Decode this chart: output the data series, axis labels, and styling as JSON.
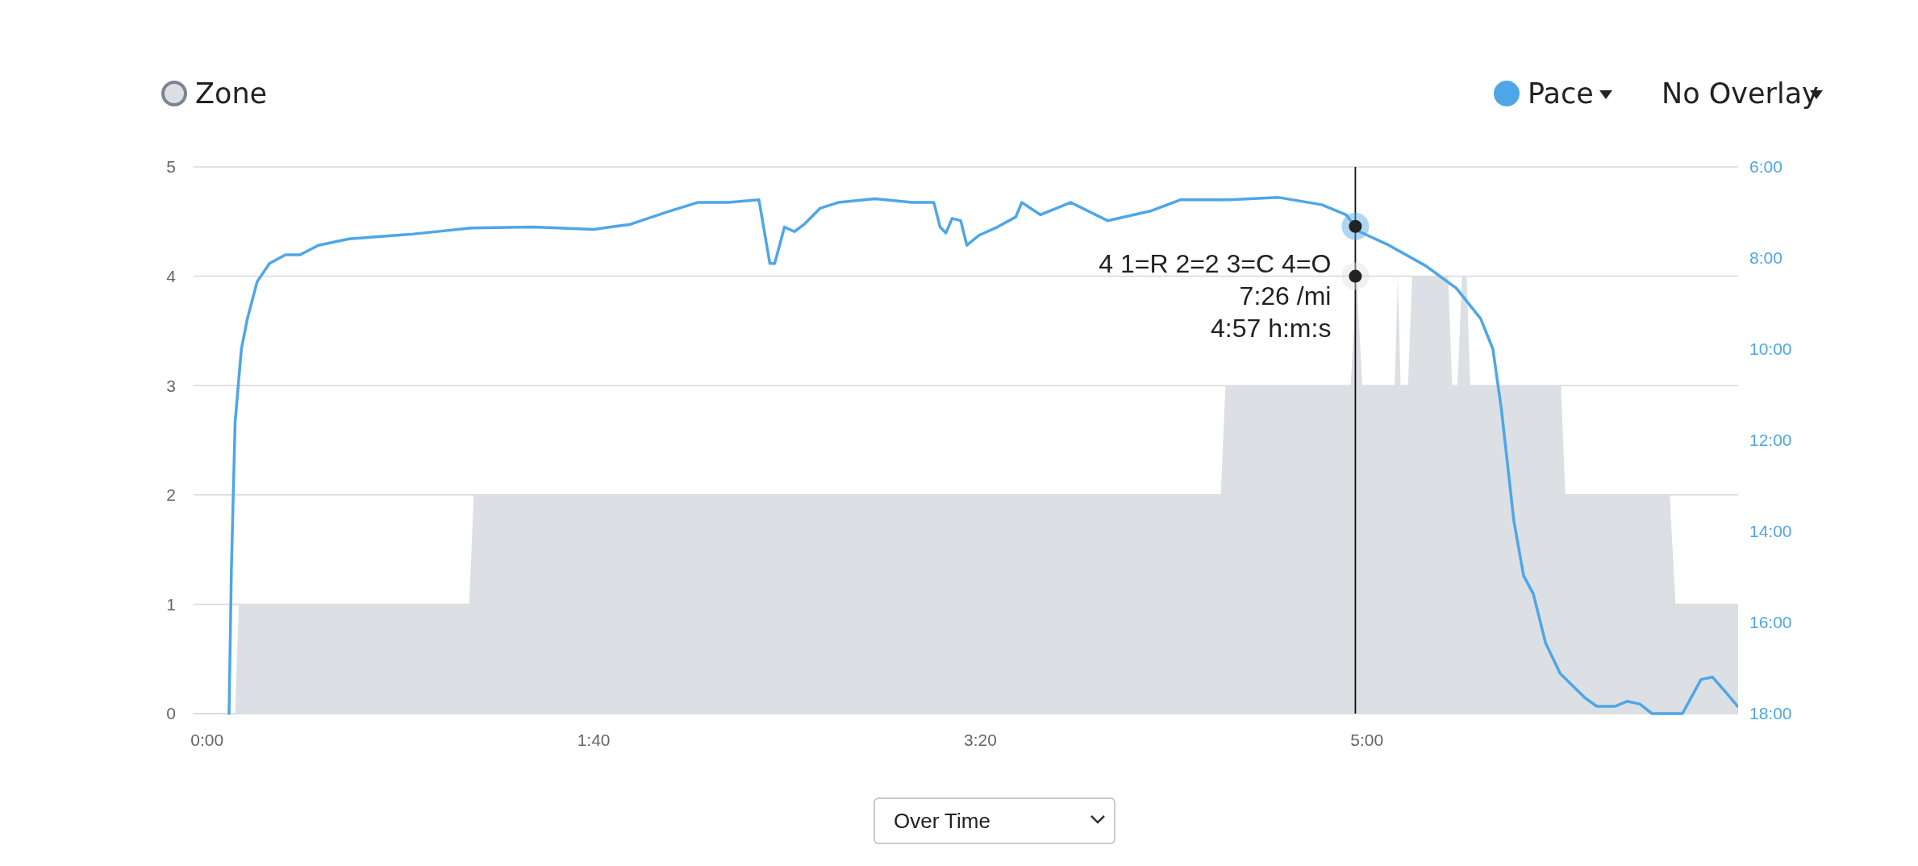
{
  "chart_data": {
    "type": "area",
    "xlim": [
      -0.058,
      6.6
    ],
    "xticks": [
      {
        "value": 0,
        "label": "0:00"
      },
      {
        "value": 1.6667,
        "label": "1:40"
      },
      {
        "value": 3.3333,
        "label": "3:20"
      },
      {
        "value": 5,
        "label": "5:00"
      }
    ],
    "ylim": [
      0,
      5
    ],
    "yticks": [
      0,
      1,
      2,
      3,
      4,
      5
    ],
    "y2lim": [
      18,
      6
    ],
    "y2ticks": [
      {
        "value": 6,
        "label": "6:00"
      },
      {
        "value": 8,
        "label": "8:00"
      },
      {
        "value": 10,
        "label": "10:00"
      },
      {
        "value": 12,
        "label": "12:00"
      },
      {
        "value": 14,
        "label": "14:00"
      },
      {
        "value": 16,
        "label": "16:00"
      },
      {
        "value": 18,
        "label": "18:00"
      }
    ],
    "grid": "y",
    "legend": "top",
    "series": [
      {
        "name": "Zone",
        "color": "#dcdfe3",
        "x": [
          0.121,
          0.137,
          1.13,
          1.15,
          4.37,
          4.39,
          4.93,
          4.955,
          4.98,
          5.12,
          5.133,
          5.145,
          5.177,
          5.195,
          5.35,
          5.367,
          5.39,
          5.41,
          5.43,
          5.445,
          5.836,
          5.855,
          6.305,
          6.33,
          6.6
        ],
        "values": [
          0,
          1,
          1,
          2,
          2,
          3,
          3,
          4,
          3,
          3,
          4,
          3,
          3,
          4,
          4,
          3,
          3,
          4,
          4,
          3,
          3,
          2,
          2,
          1,
          1
        ]
      },
      {
        "name": "Pace",
        "type": "line",
        "axis": "y2",
        "color": "#4ea6e6",
        "x": [
          0.095,
          0.105,
          0.121,
          0.148,
          0.174,
          0.216,
          0.269,
          0.338,
          0.401,
          0.48,
          0.612,
          0.876,
          1.139,
          1.403,
          1.667,
          1.825,
          1.983,
          2.115,
          2.247,
          2.379,
          2.426,
          2.447,
          2.489,
          2.532,
          2.574,
          2.642,
          2.721,
          2.88,
          3.038,
          3.133,
          3.16,
          3.185,
          3.212,
          3.249,
          3.275,
          3.328,
          3.407,
          3.486,
          3.512,
          3.592,
          3.723,
          3.882,
          4.066,
          4.198,
          4.409,
          4.62,
          4.805,
          4.91,
          4.968,
          5.095,
          5.253,
          5.385,
          5.49,
          5.543,
          5.58,
          5.633,
          5.675,
          5.717,
          5.77,
          5.833,
          5.939,
          5.991,
          6.07,
          6.123,
          6.176,
          6.229,
          6.36,
          6.44,
          6.49,
          6.545,
          6.598
        ],
        "values": [
          18.0,
          14.83,
          11.61,
          10.0,
          9.33,
          8.52,
          8.12,
          7.93,
          7.93,
          7.72,
          7.58,
          7.48,
          7.34,
          7.32,
          7.37,
          7.26,
          6.99,
          6.78,
          6.78,
          6.72,
          8.12,
          8.12,
          7.32,
          7.42,
          7.26,
          6.91,
          6.78,
          6.7,
          6.78,
          6.78,
          7.32,
          7.45,
          7.13,
          7.18,
          7.72,
          7.5,
          7.32,
          7.1,
          6.78,
          7.05,
          6.78,
          7.18,
          6.97,
          6.72,
          6.72,
          6.67,
          6.83,
          7.05,
          7.42,
          7.72,
          8.17,
          8.66,
          9.33,
          10.0,
          11.34,
          13.76,
          14.97,
          15.37,
          16.45,
          17.12,
          17.65,
          17.84,
          17.84,
          17.73,
          17.79,
          18.0,
          18.0,
          17.25,
          17.2,
          17.52,
          17.84
        ]
      }
    ],
    "ref_lines": [
      {
        "axis": "x",
        "value": 4.95,
        "color": "#111111"
      }
    ],
    "annotations": [
      "4 1=R 2=2 3=C 4=O",
      "7:26 /mi",
      "4:57 h:m:s",
      "No Overlay",
      "Over Time"
    ]
  }
}
